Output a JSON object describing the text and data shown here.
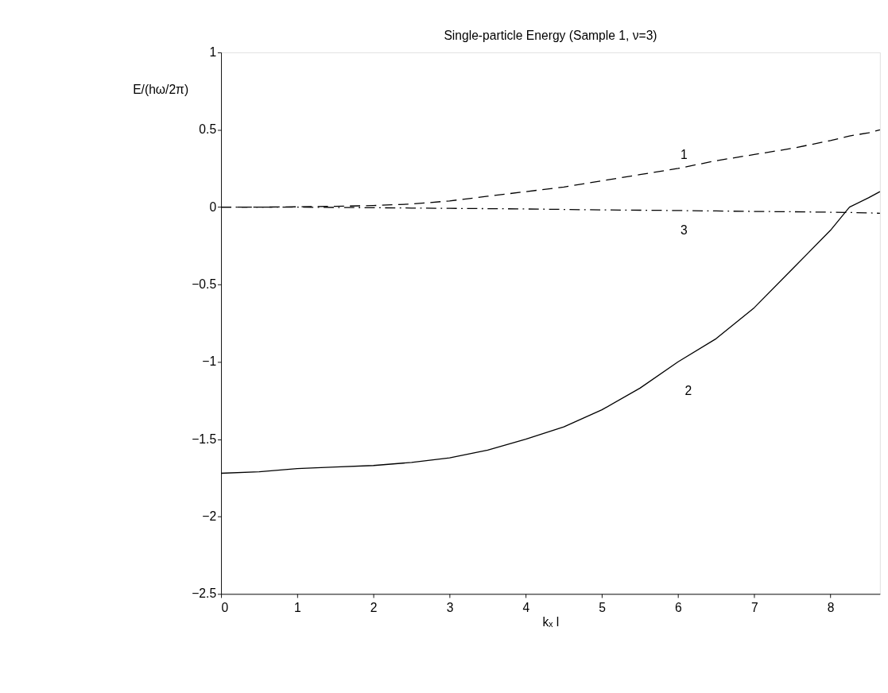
{
  "chart_data": {
    "type": "line",
    "title": "Single-particle Energy (Sample 1, ν=3)",
    "xlabel": "kₓ l",
    "ylabel": "E/(hω/2π)",
    "x": [
      0,
      0.5,
      1,
      1.5,
      2,
      2.5,
      3,
      3.5,
      4,
      4.5,
      5,
      5.5,
      6,
      6.5,
      7,
      7.5,
      8,
      8.25,
      8.5,
      8.65
    ],
    "series": [
      {
        "name": "1",
        "color": "#000000",
        "line_style": "dashed",
        "values": [
          0,
          0,
          0.002,
          0.005,
          0.01,
          0.02,
          0.04,
          0.07,
          0.1,
          0.13,
          0.17,
          0.21,
          0.25,
          0.3,
          0.34,
          0.38,
          0.43,
          0.46,
          0.48,
          0.5
        ]
      },
      {
        "name": "2",
        "color": "#000000",
        "line_style": "solid",
        "values": [
          -1.72,
          -1.71,
          -1.69,
          -1.68,
          -1.67,
          -1.65,
          -1.62,
          -1.57,
          -1.5,
          -1.42,
          -1.31,
          -1.17,
          -1.0,
          -0.85,
          -0.65,
          -0.4,
          -0.15,
          0.0,
          0.06,
          0.1
        ]
      },
      {
        "name": "3",
        "color": "#000000",
        "line_style": "dotted",
        "values": [
          0,
          0,
          0,
          -0.002,
          -0.004,
          -0.006,
          -0.008,
          -0.01,
          -0.012,
          -0.015,
          -0.018,
          -0.02,
          -0.022,
          -0.025,
          -0.028,
          -0.03,
          -0.033,
          -0.035,
          -0.037,
          -0.04
        ]
      }
    ],
    "xlim": [
      0,
      8.65
    ],
    "xticks": [
      0,
      1,
      2,
      3,
      4,
      5,
      6,
      7,
      8
    ],
    "ylim": [
      -2.5,
      1
    ],
    "yticks": [
      -2.5,
      -2,
      -1.5,
      -1,
      -0.5,
      0,
      0.5,
      1
    ],
    "grid": false,
    "legend": false,
    "marker": "none"
  }
}
